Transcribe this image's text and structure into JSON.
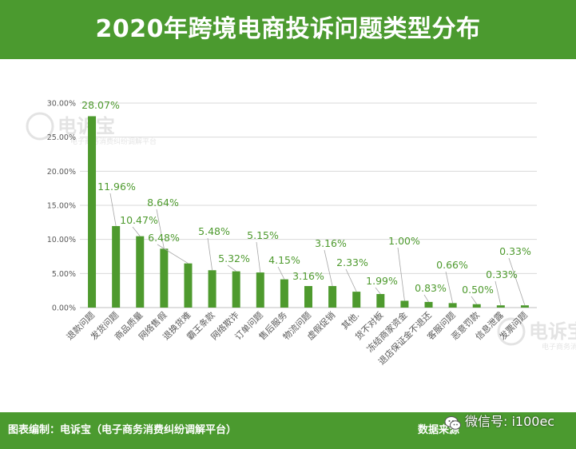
{
  "title": "2020年跨境电商投诉问题类型分布",
  "footer": {
    "left": "图表编制：电诉宝（电子商务消费纠纷调解平台）",
    "right": "数据来源",
    "wechat": "微信号: i100ec"
  },
  "watermark": {
    "brand": "电诉宝",
    "subtitle": "电子商务消费纠纷调解平台"
  },
  "colors": {
    "accent": "#4b9a2f",
    "bar": "#4e9a2e",
    "label": "#4e9a2e"
  },
  "chart_data": {
    "type": "bar",
    "categories": [
      "退款问题",
      "发货问题",
      "商品质量",
      "网络售假",
      "退换货难",
      "霸王条款",
      "网络欺诈",
      "订单问题",
      "售后服务",
      "物流问题",
      "虚假促销",
      "其他",
      "货不对板",
      "冻结商家资金",
      "退店保证金不退还",
      "客服问题",
      "恶意罚款",
      "信息泄露",
      "发票问题"
    ],
    "values": [
      28.07,
      11.96,
      10.47,
      8.64,
      6.48,
      5.48,
      5.32,
      5.15,
      4.15,
      3.16,
      3.16,
      2.33,
      1.99,
      1.0,
      0.83,
      0.66,
      0.5,
      0.33,
      0.33
    ],
    "value_labels": [
      "28.07%",
      "11.96%",
      "10.47%",
      "8.64%",
      "6.48%",
      "5.48%",
      "5.32%",
      "5.15%",
      "4.15%",
      "3.16%",
      "3.16%",
      "2.33%",
      "1.99%",
      "1.00%",
      "0.83%",
      "0.66%",
      "0.50%",
      "0.33%",
      "0.33%"
    ],
    "category_labels": [
      "退款问题",
      "发货问题",
      "商品质量",
      "网络售假",
      "退换货难",
      "霸王条款",
      "网络欺诈",
      "订单问题",
      "售后服务",
      "物流问题",
      "虚假促销",
      "其他.",
      "货不对板",
      "冻结商家资金",
      "退店保证金不退还",
      "客服问题",
      "恶意罚款",
      "信息泄露",
      "发票问题"
    ],
    "yticks": [
      0,
      5,
      10,
      15,
      20,
      25,
      30
    ],
    "ytick_labels": [
      "0.00%",
      "5.00%",
      "10.00%",
      "15.00%",
      "20.00%",
      "25.00%",
      "30.00%"
    ],
    "ylim": [
      0,
      30
    ],
    "grid": true
  }
}
